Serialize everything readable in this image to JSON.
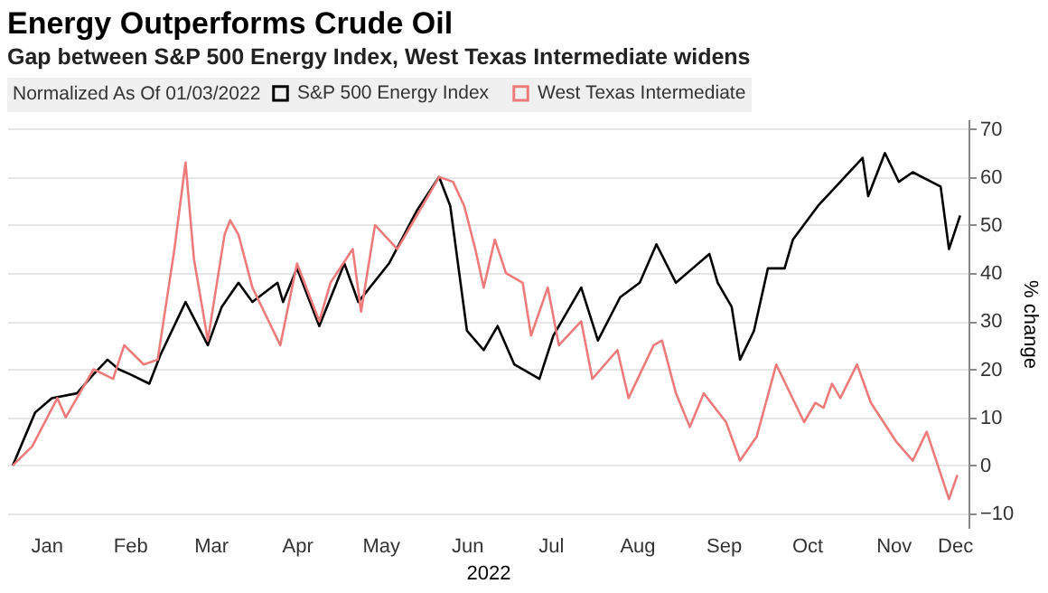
{
  "chart_data": {
    "type": "line",
    "title": "Energy Outperforms Crude Oil",
    "subtitle": "Gap between S&P 500 Energy Index, West Texas Intermediate widens",
    "xlabel": "2022",
    "ylabel": "% change",
    "legend_title": "Normalized As Of 01/03/2022",
    "legend": "top left",
    "grid": "y",
    "xlim": [
      "2022-01-01",
      "2022-12-12"
    ],
    "xticks": [
      {
        "value": "2022-01-15",
        "label": "Jan"
      },
      {
        "value": "2022-02-14",
        "label": "Feb"
      },
      {
        "value": "2022-03-15",
        "label": "Mar"
      },
      {
        "value": "2022-04-15",
        "label": "Apr"
      },
      {
        "value": "2022-05-15",
        "label": "May"
      },
      {
        "value": "2022-06-15",
        "label": "Jun"
      },
      {
        "value": "2022-07-15",
        "label": "Jul"
      },
      {
        "value": "2022-08-15",
        "label": "Aug"
      },
      {
        "value": "2022-09-15",
        "label": "Sep"
      },
      {
        "value": "2022-10-15",
        "label": "Oct"
      },
      {
        "value": "2022-11-15",
        "label": "Nov"
      },
      {
        "value": "2022-12-07",
        "label": "Dec"
      }
    ],
    "ylim": [
      -13,
      72
    ],
    "yticks": [
      -10,
      0,
      10,
      20,
      30,
      40,
      50,
      60,
      70
    ],
    "series": [
      {
        "name": "S&P 500 Energy Index",
        "color": "#000000",
        "x": [
          "2022-01-03",
          "2022-01-11",
          "2022-01-17",
          "2022-01-26",
          "2022-02-01",
          "2022-02-06",
          "2022-02-10",
          "2022-02-14",
          "2022-02-21",
          "2022-02-25",
          "2022-03-06",
          "2022-03-14",
          "2022-03-19",
          "2022-03-25",
          "2022-03-30",
          "2022-04-08",
          "2022-04-10",
          "2022-04-15",
          "2022-04-23",
          "2022-05-02",
          "2022-05-07",
          "2022-05-18",
          "2022-05-28",
          "2022-06-05",
          "2022-06-09",
          "2022-06-15",
          "2022-06-21",
          "2022-06-26",
          "2022-07-02",
          "2022-07-11",
          "2022-07-16",
          "2022-07-26",
          "2022-08-01",
          "2022-08-09",
          "2022-08-16",
          "2022-08-22",
          "2022-08-29",
          "2022-09-10",
          "2022-09-13",
          "2022-09-18",
          "2022-09-21",
          "2022-09-26",
          "2022-10-01",
          "2022-10-07",
          "2022-10-10",
          "2022-10-19",
          "2022-10-27",
          "2022-11-04",
          "2022-11-06",
          "2022-11-12",
          "2022-11-17",
          "2022-11-22",
          "2022-12-02",
          "2022-12-05",
          "2022-12-09"
        ],
        "values": [
          0,
          11,
          14,
          15,
          19,
          22,
          20,
          19,
          17,
          23,
          34,
          25,
          33,
          38,
          34,
          38,
          34,
          41,
          29,
          42,
          34,
          42,
          53,
          60,
          54,
          28,
          24,
          29,
          21,
          18,
          27,
          37,
          26,
          35,
          38,
          46,
          38,
          44,
          38,
          33,
          22,
          28,
          41,
          41,
          47,
          54,
          59,
          64,
          56,
          65,
          59,
          61,
          58,
          45,
          52
        ]
      },
      {
        "name": "West Texas Intermediate",
        "color": "#ee7b7b",
        "x": [
          "2022-01-03",
          "2022-01-10",
          "2022-01-19",
          "2022-01-22",
          "2022-02-01",
          "2022-02-08",
          "2022-02-12",
          "2022-02-19",
          "2022-02-24",
          "2022-03-02",
          "2022-03-06",
          "2022-03-09",
          "2022-03-14",
          "2022-03-20",
          "2022-03-22",
          "2022-03-25",
          "2022-03-30",
          "2022-04-04",
          "2022-04-09",
          "2022-04-15",
          "2022-04-23",
          "2022-04-27",
          "2022-05-05",
          "2022-05-08",
          "2022-05-13",
          "2022-05-21",
          "2022-05-26",
          "2022-06-05",
          "2022-06-10",
          "2022-06-14",
          "2022-06-18",
          "2022-06-21",
          "2022-06-25",
          "2022-06-29",
          "2022-07-05",
          "2022-07-08",
          "2022-07-14",
          "2022-07-18",
          "2022-07-26",
          "2022-07-30",
          "2022-08-08",
          "2022-08-12",
          "2022-08-21",
          "2022-08-24",
          "2022-08-29",
          "2022-09-03",
          "2022-09-08",
          "2022-09-16",
          "2022-09-21",
          "2022-09-27",
          "2022-10-04",
          "2022-10-14",
          "2022-10-18",
          "2022-10-21",
          "2022-10-24",
          "2022-10-27",
          "2022-11-02",
          "2022-11-07",
          "2022-11-16",
          "2022-11-22",
          "2022-11-27",
          "2022-12-05",
          "2022-12-08"
        ],
        "values": [
          0,
          4,
          14,
          10,
          20,
          18,
          25,
          21,
          22,
          45,
          63,
          43,
          26,
          48,
          51,
          48,
          37,
          31,
          25,
          42,
          30,
          38,
          45,
          32,
          50,
          45,
          50,
          60,
          59,
          54,
          45,
          37,
          47,
          40,
          38,
          27,
          37,
          25,
          30,
          18,
          24,
          14,
          25,
          26,
          15,
          8,
          15,
          9,
          1,
          6,
          21,
          9,
          13,
          12,
          17,
          14,
          21,
          13,
          5,
          1,
          7,
          -7,
          -2
        ]
      }
    ]
  }
}
